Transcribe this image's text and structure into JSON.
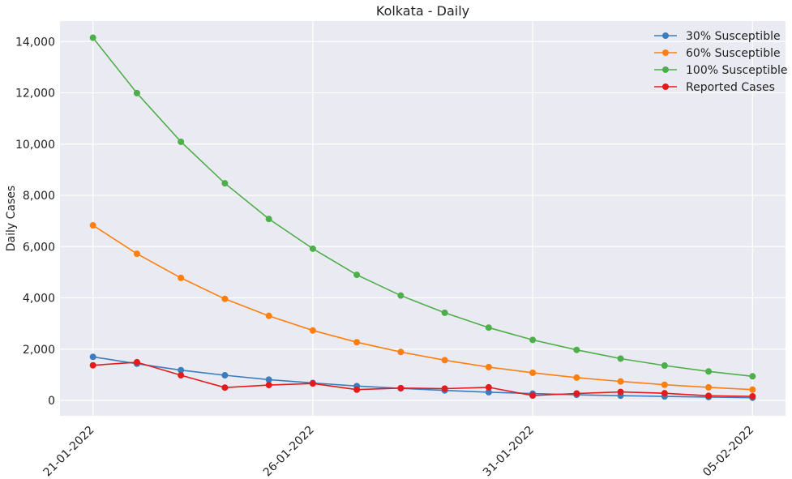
{
  "chart_data": {
    "type": "line",
    "title": "Kolkata - Daily",
    "xlabel": "",
    "ylabel": "Daily Cases",
    "x": [
      "21-01-2022",
      "22-01-2022",
      "23-01-2022",
      "24-01-2022",
      "25-01-2022",
      "26-01-2022",
      "27-01-2022",
      "28-01-2022",
      "29-01-2022",
      "30-01-2022",
      "31-01-2022",
      "01-02-2022",
      "02-02-2022",
      "03-02-2022",
      "04-02-2022",
      "05-02-2022"
    ],
    "xticks": [
      "21-01-2022",
      "26-01-2022",
      "31-01-2022",
      "05-02-2022"
    ],
    "yticks": [
      "0",
      "2,000",
      "4,000",
      "6,000",
      "8,000",
      "10,000",
      "12,000",
      "14,000"
    ],
    "ylim": [
      -600,
      14800
    ],
    "grid": true,
    "legend_position": "top-right",
    "series": [
      {
        "name": "30% Susceptible",
        "color": "#3a7dbf",
        "values": [
          1700,
          1430,
          1180,
          980,
          810,
          680,
          560,
          470,
          390,
          320,
          265,
          220,
          185,
          155,
          130,
          105
        ]
      },
      {
        "name": "60% Susceptible",
        "color": "#ff7f0e",
        "values": [
          6830,
          5720,
          4780,
          3960,
          3300,
          2730,
          2270,
          1890,
          1570,
          1300,
          1080,
          890,
          740,
          610,
          510,
          420
        ]
      },
      {
        "name": "100% Susceptible",
        "color": "#4daf4a",
        "values": [
          14150,
          11990,
          10090,
          8470,
          7080,
          5920,
          4900,
          4090,
          3420,
          2840,
          2360,
          1970,
          1630,
          1360,
          1130,
          940
        ]
      },
      {
        "name": "Reported Cases",
        "color": "#e41a1c",
        "values": [
          1370,
          1490,
          980,
          500,
          600,
          660,
          420,
          480,
          460,
          510,
          190,
          270,
          330,
          280,
          180,
          160
        ]
      }
    ]
  }
}
